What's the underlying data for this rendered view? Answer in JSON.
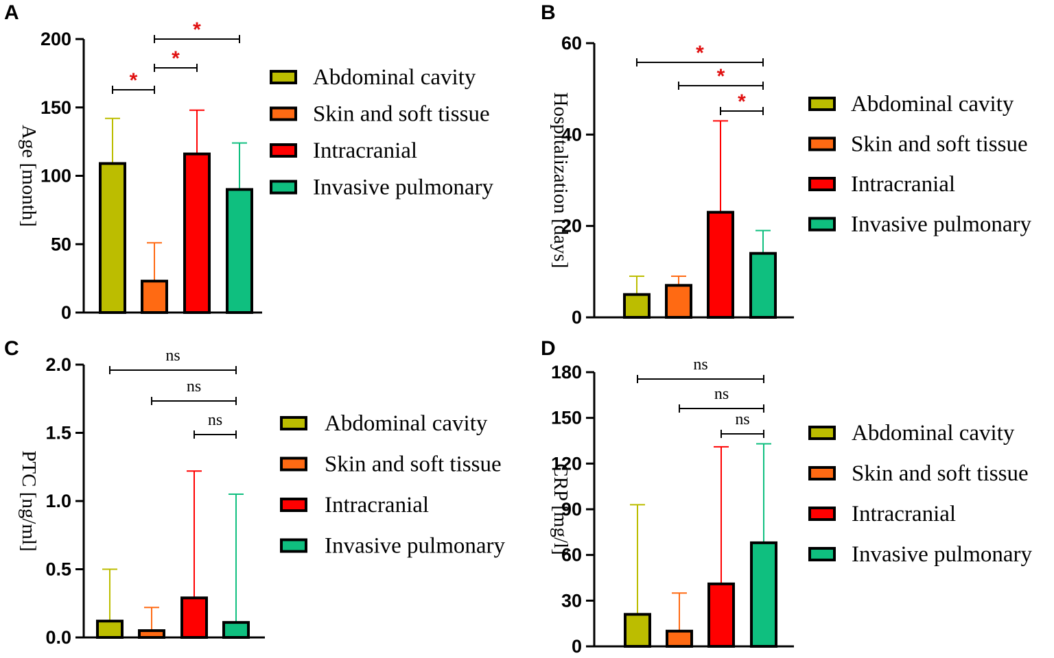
{
  "figure": {
    "colors": {
      "abdominal": "#BCBD00",
      "skin": "#FF6A13",
      "intracranial": "#FF0000",
      "pulmonary": "#0FBF7F",
      "axis": "#000000",
      "star": "#E01010"
    }
  },
  "chart_data": [
    {
      "panel": "A",
      "type": "bar",
      "title": "",
      "ylabel": "Age [month]",
      "ylim": [
        0,
        200
      ],
      "ticks": [
        0,
        50,
        100,
        150,
        200
      ],
      "tick_labels": [
        "0",
        "50",
        "100",
        "150",
        "200"
      ],
      "categories": [
        "Abdominal cavity",
        "Skin and soft tissue",
        "Intracranial",
        "Invasive pulmonary"
      ],
      "values": [
        109,
        23,
        116,
        90
      ],
      "error_upper": [
        142,
        51,
        148,
        124
      ],
      "legend": [
        "Abdominal cavity",
        "Skin and soft tissue",
        "Intracranial",
        "Invasive pulmonary"
      ],
      "legend_position": "right",
      "significance": [
        {
          "from": 0,
          "to": 1,
          "label": "*"
        },
        {
          "from": 1,
          "to": 2,
          "label": "*"
        },
        {
          "from": 1,
          "to": 3,
          "label": "*"
        }
      ]
    },
    {
      "panel": "B",
      "type": "bar",
      "title": "",
      "ylabel": "Hospitalization [days]",
      "ylim": [
        0,
        60
      ],
      "ticks": [
        0,
        20,
        40,
        60
      ],
      "tick_labels": [
        "0",
        "20",
        "40",
        "60"
      ],
      "categories": [
        "Abdominal cavity",
        "Skin and soft tissue",
        "Intracranial",
        "Invasive pulmonary"
      ],
      "values": [
        5,
        7,
        23,
        14
      ],
      "error_upper": [
        9,
        9,
        43,
        19
      ],
      "legend": [
        "Abdominal cavity",
        "Skin and soft tissue",
        "Intracranial",
        "Invasive pulmonary"
      ],
      "legend_position": "right",
      "significance": [
        {
          "from": 0,
          "to": 3,
          "label": "*"
        },
        {
          "from": 1,
          "to": 3,
          "label": "*"
        },
        {
          "from": 2,
          "to": 3,
          "label": "*"
        }
      ]
    },
    {
      "panel": "C",
      "type": "bar",
      "title": "",
      "ylabel": "PTC [ng/ml]",
      "ylim": [
        0,
        2.0
      ],
      "ticks": [
        0,
        0.5,
        1.0,
        1.5,
        2.0
      ],
      "tick_labels": [
        "0.0",
        "0.5",
        "1.0",
        "1.5",
        "2.0"
      ],
      "categories": [
        "Abdominal cavity",
        "Skin and soft tissue",
        "Intracranial",
        "Invasive pulmonary"
      ],
      "values": [
        0.12,
        0.05,
        0.29,
        0.11
      ],
      "error_upper": [
        0.5,
        0.22,
        1.22,
        1.05
      ],
      "legend": [
        "Abdominal cavity",
        "Skin and soft tissue",
        "Intracranial",
        "Invasive pulmonary"
      ],
      "legend_position": "right",
      "significance": [
        {
          "from": 0,
          "to": 3,
          "label": "ns"
        },
        {
          "from": 1,
          "to": 3,
          "label": "ns"
        },
        {
          "from": 2,
          "to": 3,
          "label": "ns"
        }
      ]
    },
    {
      "panel": "D",
      "type": "bar",
      "title": "",
      "ylabel": "CRP [mg/l]",
      "ylim": [
        0,
        180
      ],
      "ticks": [
        0,
        30,
        60,
        90,
        120,
        150,
        180
      ],
      "tick_labels": [
        "0",
        "30",
        "60",
        "90",
        "120",
        "150",
        "180"
      ],
      "categories": [
        "Abdominal cavity",
        "Skin and soft tissue",
        "Intracranial",
        "Invasive pulmonary"
      ],
      "values": [
        21,
        10,
        41,
        68
      ],
      "error_upper": [
        93,
        35,
        131,
        133
      ],
      "legend": [
        "Abdominal cavity",
        "Skin and soft tissue",
        "Intracranial",
        "Invasive pulmonary"
      ],
      "legend_position": "right",
      "significance": [
        {
          "from": 0,
          "to": 3,
          "label": "ns"
        },
        {
          "from": 1,
          "to": 3,
          "label": "ns"
        },
        {
          "from": 2,
          "to": 3,
          "label": "ns"
        }
      ]
    }
  ]
}
